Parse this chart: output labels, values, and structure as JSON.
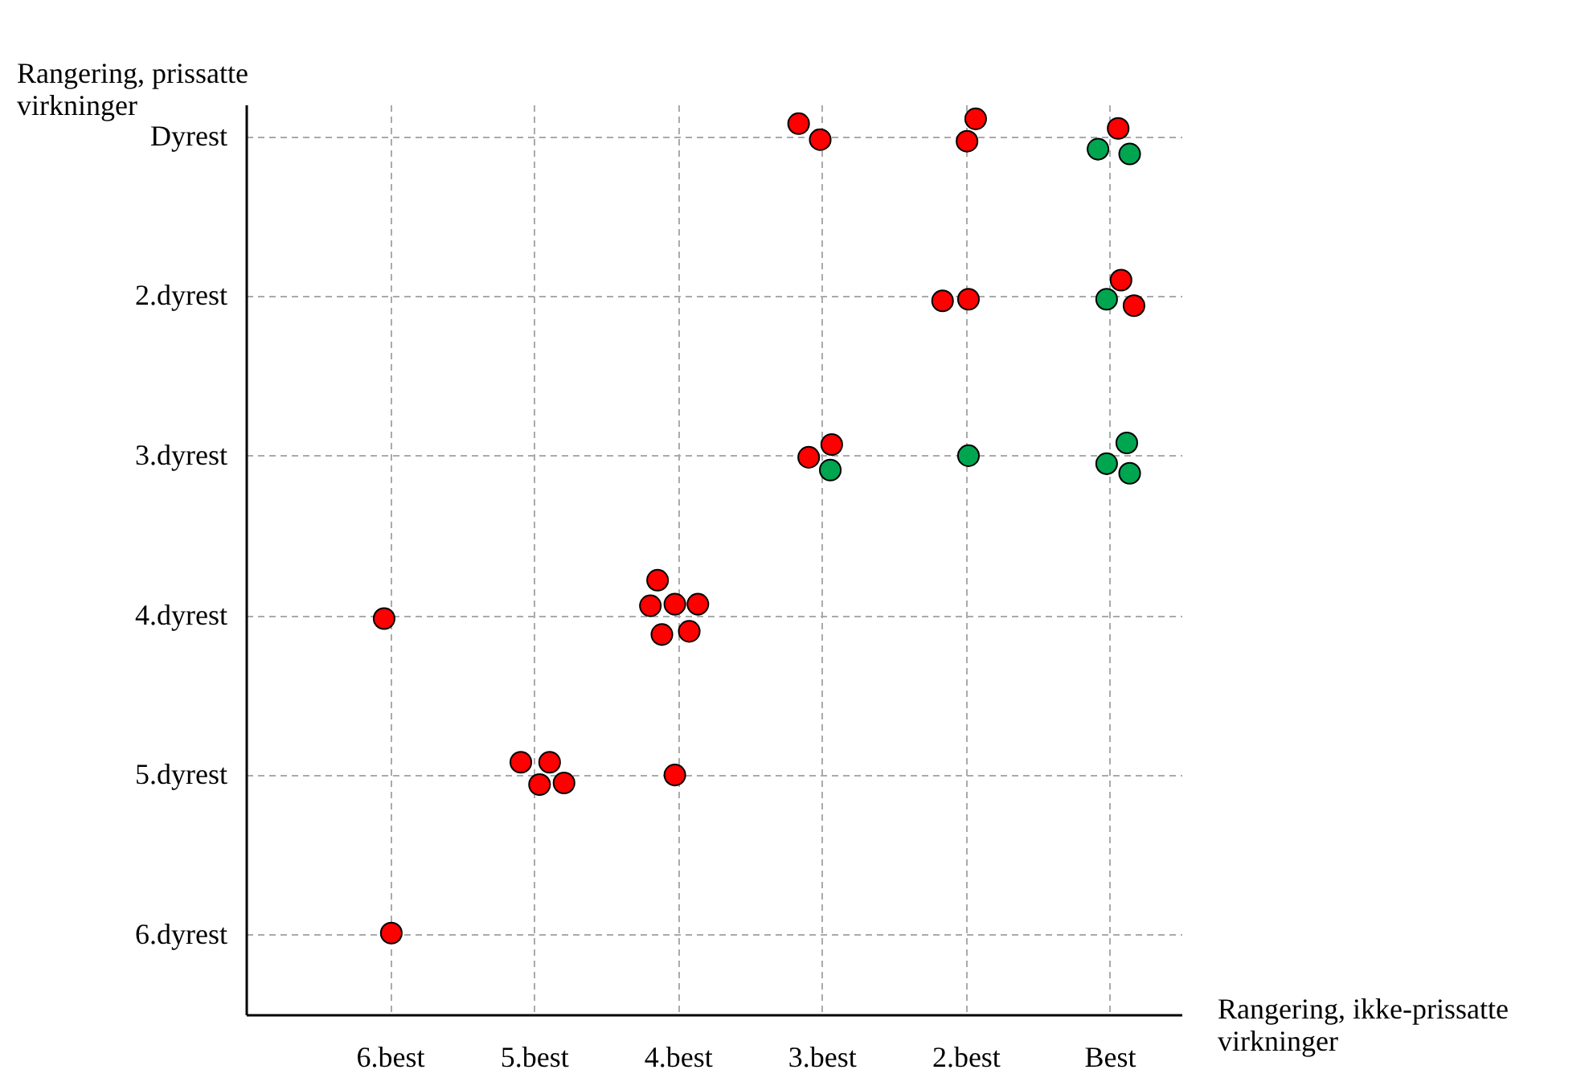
{
  "chart_data": {
    "type": "scatter",
    "xlabel": "Rangering, ikke-prissatte virkninger",
    "ylabel": "Rangering, prissatte virkninger",
    "xlim": [
      7,
      0.5
    ],
    "ylim": [
      6.5,
      0.8
    ],
    "xticks": [
      {
        "value": 6,
        "label": "6.best"
      },
      {
        "value": 5,
        "label": "5.best"
      },
      {
        "value": 4,
        "label": "4.best"
      },
      {
        "value": 3,
        "label": "3.best"
      },
      {
        "value": 2,
        "label": "2.best"
      },
      {
        "value": 1,
        "label": "Best"
      }
    ],
    "yticks": [
      {
        "value": 6,
        "label": "6.dyrest"
      },
      {
        "value": 5,
        "label": "5.dyrest"
      },
      {
        "value": 4,
        "label": "4.dyrest"
      },
      {
        "value": 3,
        "label": "3.dyrest"
      },
      {
        "value": 2,
        "label": "2.dyrest"
      },
      {
        "value": 1,
        "label": "Dyrest"
      }
    ],
    "grid": true,
    "legend": false,
    "marker": "circle",
    "series": [
      {
        "color": "#ff0000",
        "x": [
          3.16,
          3.01,
          1.93,
          1.99,
          0.94,
          2.16,
          1.98,
          0.92,
          0.83,
          3.09,
          2.93,
          6.04,
          4.14,
          4.19,
          4.02,
          3.86,
          4.11,
          3.92,
          5.09,
          4.89,
          4.96,
          4.79,
          4.02,
          5.99
        ],
        "values": [
          0.92,
          1.02,
          0.89,
          1.03,
          0.95,
          2.03,
          2.02,
          1.9,
          2.06,
          3.01,
          2.93,
          4.02,
          3.78,
          3.94,
          3.93,
          3.93,
          4.12,
          4.1,
          4.92,
          4.92,
          5.06,
          5.05,
          5.0,
          5.99
        ]
      },
      {
        "color": "#00a550",
        "x": [
          1.08,
          0.86,
          1.02,
          2.94,
          1.98,
          0.88,
          1.02,
          0.86
        ],
        "values": [
          1.08,
          1.11,
          2.02,
          3.09,
          3.0,
          2.92,
          3.05,
          3.11
        ]
      }
    ]
  }
}
